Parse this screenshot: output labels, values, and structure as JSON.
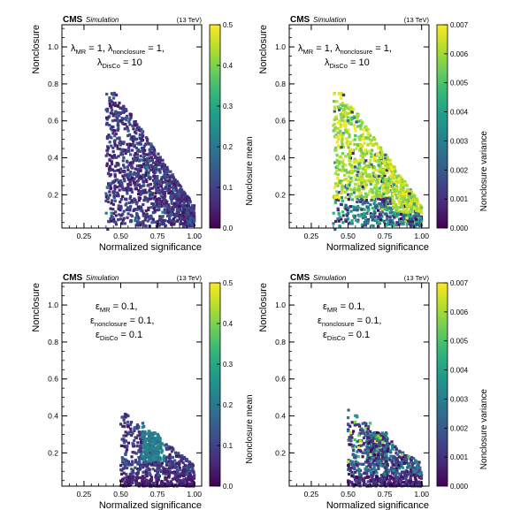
{
  "panels": [
    {
      "id": "tl",
      "annotation": {
        "line1": [
          {
            "sym": "λ",
            "sub": "MR",
            "rest": " = 1,  "
          },
          {
            "sym": "λ",
            "sub": "nonclosure",
            "rest": " = 1,"
          }
        ],
        "line2": [
          {
            "sym": "λ",
            "sub": "DisCo",
            "rest": " = 10"
          }
        ]
      },
      "colorbar": {
        "label": "Nonclosure mean",
        "ticks": [
          "0.0",
          "0.1",
          "0.2",
          "0.3",
          "0.4",
          "0.5"
        ],
        "max": 0.5
      }
    },
    {
      "id": "tr",
      "annotation": {
        "line1": [
          {
            "sym": "λ",
            "sub": "MR",
            "rest": " = 1,  "
          },
          {
            "sym": "λ",
            "sub": "nonclosure",
            "rest": " = 1,"
          }
        ],
        "line2": [
          {
            "sym": "λ",
            "sub": "DisCo",
            "rest": " = 10"
          }
        ]
      },
      "colorbar": {
        "label": "Nonclosure variance",
        "ticks": [
          "0.000",
          "0.001",
          "0.002",
          "0.003",
          "0.004",
          "0.005",
          "0.006",
          "0.007"
        ],
        "max": 0.007
      }
    },
    {
      "id": "bl",
      "annotation": {
        "line1": [
          {
            "sym": "ε",
            "sub": "MR",
            "rest": " = 0.1,"
          }
        ],
        "line2": [
          {
            "sym": "ε",
            "sub": "nonclosure",
            "rest": " = 0.1,"
          }
        ],
        "line3": [
          {
            "sym": "ε",
            "sub": "DisCo",
            "rest": " = 0.1"
          }
        ]
      },
      "colorbar": {
        "label": "Nonclosure mean",
        "ticks": [
          "0.0",
          "0.1",
          "0.2",
          "0.3",
          "0.4",
          "0.5"
        ],
        "max": 0.5
      }
    },
    {
      "id": "br",
      "annotation": {
        "line1": [
          {
            "sym": "ε",
            "sub": "MR",
            "rest": " = 0.1,"
          }
        ],
        "line2": [
          {
            "sym": "ε",
            "sub": "nonclosure",
            "rest": " = 0.1,"
          }
        ],
        "line3": [
          {
            "sym": "ε",
            "sub": "DisCo",
            "rest": " = 0.1"
          }
        ]
      },
      "colorbar": {
        "label": "Nonclosure variance",
        "ticks": [
          "0.000",
          "0.001",
          "0.002",
          "0.003",
          "0.004",
          "0.005",
          "0.006",
          "0.007"
        ],
        "max": 0.007
      }
    }
  ],
  "common": {
    "cms_label": "CMS",
    "simulation_label": "Simulation",
    "energy_label": "(13 TeV)",
    "xlabel": "Normalized significance",
    "ylabel": "Nonclosure",
    "xticks": [
      "0.25",
      "0.50",
      "0.75",
      "1.00"
    ],
    "yticks": [
      "0.2",
      "0.4",
      "0.6",
      "0.8",
      "1.0"
    ],
    "colormap": [
      "#440154",
      "#482878",
      "#3e4989",
      "#31688e",
      "#26828e",
      "#1f9e89",
      "#35b779",
      "#6ece58",
      "#b5de2b",
      "#fde725"
    ]
  },
  "chart_data": [
    {
      "type": "scatter",
      "panel": "tl",
      "xlim": [
        0.1,
        1.05
      ],
      "ylim": [
        0.02,
        1.12
      ],
      "color_by": "Nonclosure mean",
      "color_range": [
        0,
        0.5
      ],
      "description_of_cloud": "dense triangular cloud of points spanning x ≈ 0.40–1.00, y ≈ 0.03–0.75; colors mostly 0.02–0.15",
      "points": [
        [
          0.47,
          0.74,
          0.05
        ],
        [
          0.45,
          0.63,
          0.06
        ],
        [
          0.5,
          0.6,
          0.04
        ],
        [
          0.48,
          0.55,
          0.08
        ],
        [
          0.55,
          0.52,
          0.1
        ],
        [
          0.6,
          0.5,
          0.09
        ],
        [
          0.65,
          0.45,
          0.07
        ],
        [
          0.7,
          0.42,
          0.12
        ],
        [
          0.75,
          0.38,
          0.06
        ],
        [
          0.8,
          0.34,
          0.1
        ],
        [
          0.85,
          0.3,
          0.08
        ],
        [
          0.9,
          0.25,
          0.05
        ],
        [
          0.95,
          0.18,
          0.04
        ],
        [
          0.98,
          0.1,
          0.03
        ]
      ]
    },
    {
      "type": "scatter",
      "panel": "tr",
      "xlim": [
        0.1,
        1.05
      ],
      "ylim": [
        0.02,
        1.12
      ],
      "color_by": "Nonclosure variance",
      "color_range": [
        0,
        0.007
      ],
      "description_of_cloud": "same cloud as left; upper part yellow (≈0.007), lower/left part purple–teal",
      "points": [
        [
          0.47,
          0.74,
          0.001
        ],
        [
          0.5,
          0.6,
          0.003
        ],
        [
          0.55,
          0.52,
          0.005
        ],
        [
          0.6,
          0.5,
          0.007
        ],
        [
          0.7,
          0.42,
          0.007
        ],
        [
          0.8,
          0.34,
          0.007
        ],
        [
          0.9,
          0.25,
          0.006
        ],
        [
          0.95,
          0.15,
          0.004
        ],
        [
          0.6,
          0.15,
          0.003
        ],
        [
          0.5,
          0.1,
          0.002
        ]
      ]
    },
    {
      "type": "scatter",
      "panel": "bl",
      "xlim": [
        0.1,
        1.05
      ],
      "ylim": [
        0.02,
        1.12
      ],
      "color_by": "Nonclosure mean",
      "color_range": [
        0,
        0.5
      ],
      "description_of_cloud": "cloud spanning x ≈ 0.50–1.00, y ≈ 0.02–0.42; denser cluster near (0.75, 0.25) with values ≈ 0.2",
      "points": [
        [
          0.55,
          0.4,
          0.1
        ],
        [
          0.65,
          0.36,
          0.15
        ],
        [
          0.75,
          0.3,
          0.22
        ],
        [
          0.78,
          0.25,
          0.22
        ],
        [
          0.7,
          0.2,
          0.12
        ],
        [
          0.6,
          0.15,
          0.08
        ],
        [
          0.85,
          0.12,
          0.05
        ],
        [
          0.95,
          0.05,
          0.03
        ]
      ]
    },
    {
      "type": "scatter",
      "panel": "br",
      "xlim": [
        0.1,
        1.05
      ],
      "ylim": [
        0.02,
        1.12
      ],
      "color_by": "Nonclosure variance",
      "color_range": [
        0,
        0.007
      ],
      "description_of_cloud": "same cloud as left; mostly purple–teal, scattered green/yellow points near the upper edge",
      "points": [
        [
          0.55,
          0.4,
          0.004
        ],
        [
          0.65,
          0.36,
          0.005
        ],
        [
          0.75,
          0.3,
          0.003
        ],
        [
          0.72,
          0.28,
          0.006
        ],
        [
          0.6,
          0.2,
          0.002
        ],
        [
          0.8,
          0.15,
          0.001
        ],
        [
          0.9,
          0.08,
          0.001
        ]
      ]
    }
  ]
}
